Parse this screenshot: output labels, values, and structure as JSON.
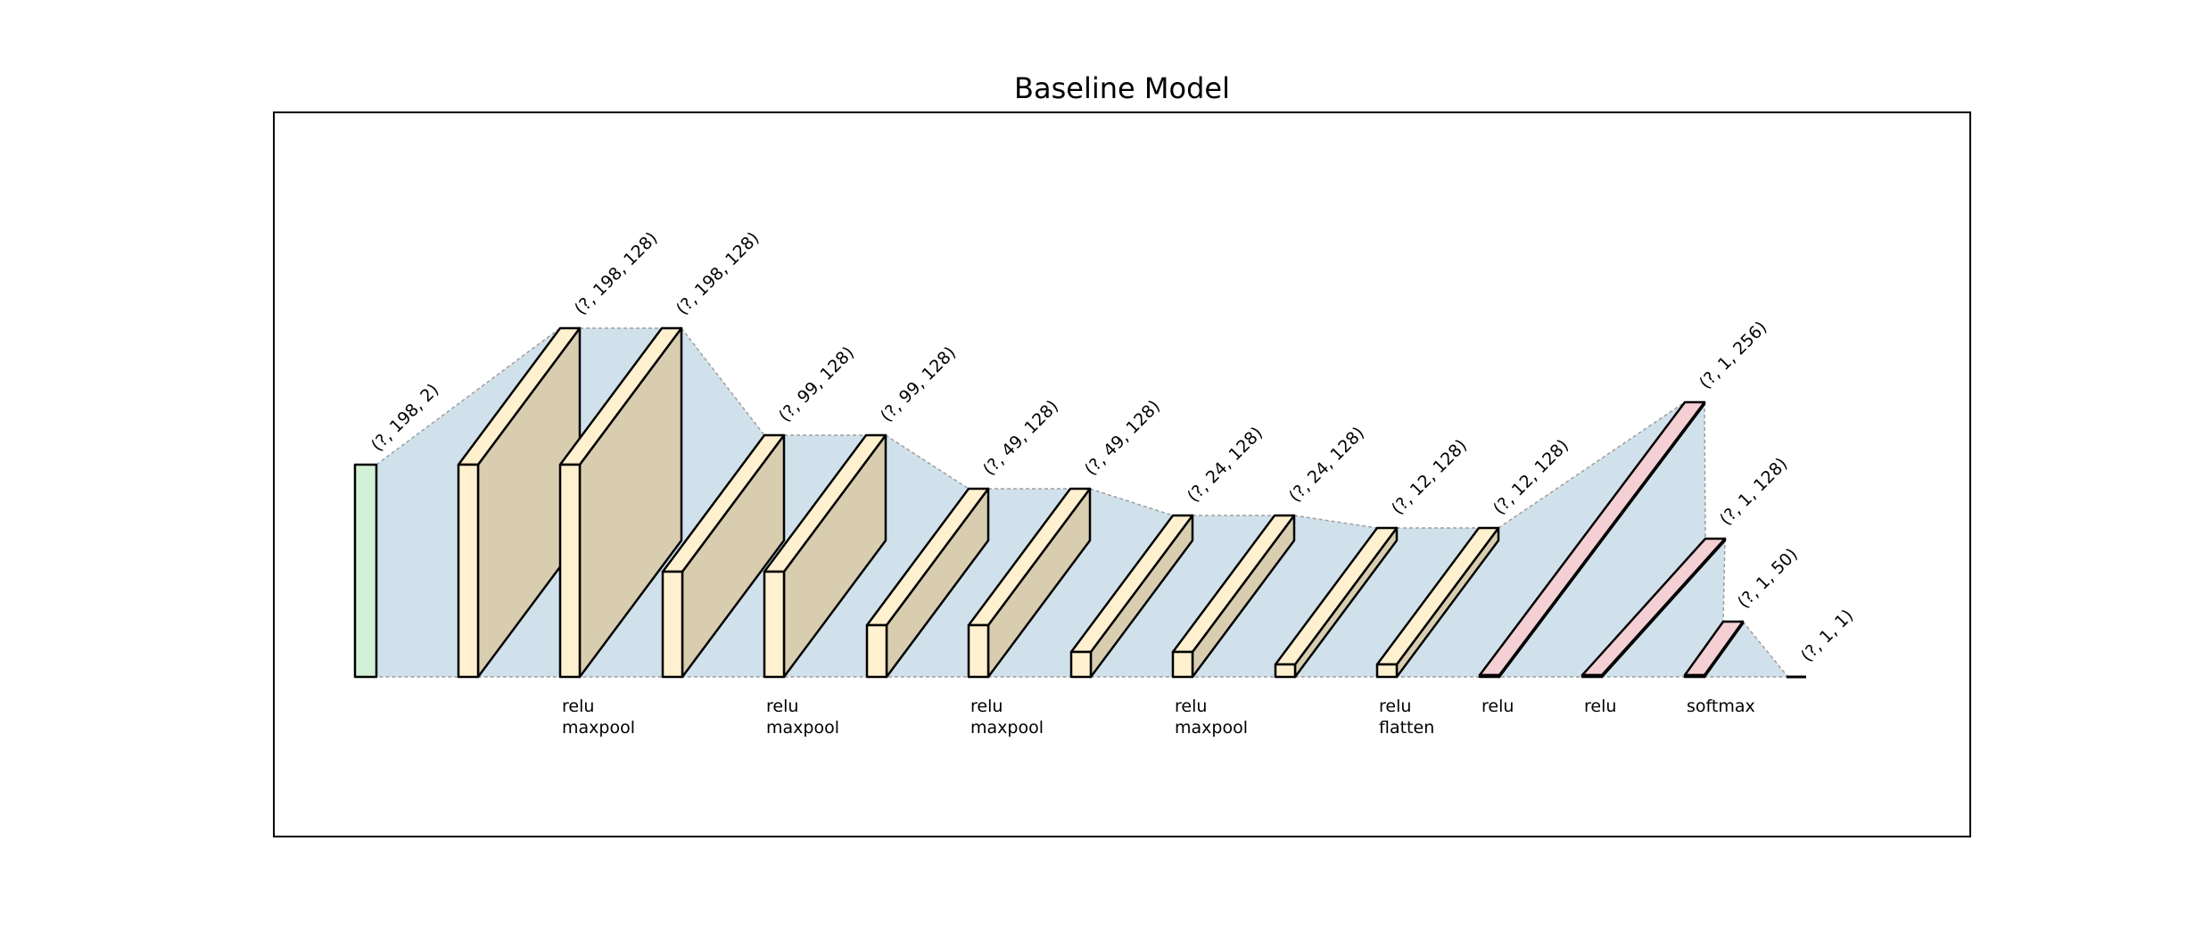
{
  "title": "Baseline Model",
  "colors": {
    "input": "#d3f1d6",
    "conv": "#fff1cf",
    "dense": "#f4cfd3",
    "connector": "#cfe0ec",
    "connector_stroke": "#999999"
  },
  "layers": [
    {
      "kind": "input",
      "shape": "(?, 198, 2)",
      "ops": []
    },
    {
      "kind": "conv",
      "shape": "(?, 198, 128)",
      "ops": []
    },
    {
      "kind": "conv",
      "shape": "(?, 198, 128)",
      "ops": [
        "relu",
        "maxpool"
      ]
    },
    {
      "kind": "conv",
      "shape": "(?, 99, 128)",
      "ops": []
    },
    {
      "kind": "conv",
      "shape": "(?, 99, 128)",
      "ops": [
        "relu",
        "maxpool"
      ]
    },
    {
      "kind": "conv",
      "shape": "(?, 49, 128)",
      "ops": []
    },
    {
      "kind": "conv",
      "shape": "(?, 49, 128)",
      "ops": [
        "relu",
        "maxpool"
      ]
    },
    {
      "kind": "conv",
      "shape": "(?, 24, 128)",
      "ops": []
    },
    {
      "kind": "conv",
      "shape": "(?, 24, 128)",
      "ops": [
        "relu",
        "maxpool"
      ]
    },
    {
      "kind": "conv",
      "shape": "(?, 12, 128)",
      "ops": []
    },
    {
      "kind": "conv",
      "shape": "(?, 12, 128)",
      "ops": [
        "relu",
        "flatten"
      ]
    },
    {
      "kind": "dense",
      "shape": "(?, 1, 256)",
      "ops": [
        "relu"
      ]
    },
    {
      "kind": "dense",
      "shape": "(?, 1, 128)",
      "ops": [
        "relu"
      ]
    },
    {
      "kind": "dense",
      "shape": "(?, 1, 50)",
      "ops": [
        "softmax"
      ]
    },
    {
      "kind": "output",
      "shape": "(?, 1, 1)",
      "ops": []
    }
  ]
}
